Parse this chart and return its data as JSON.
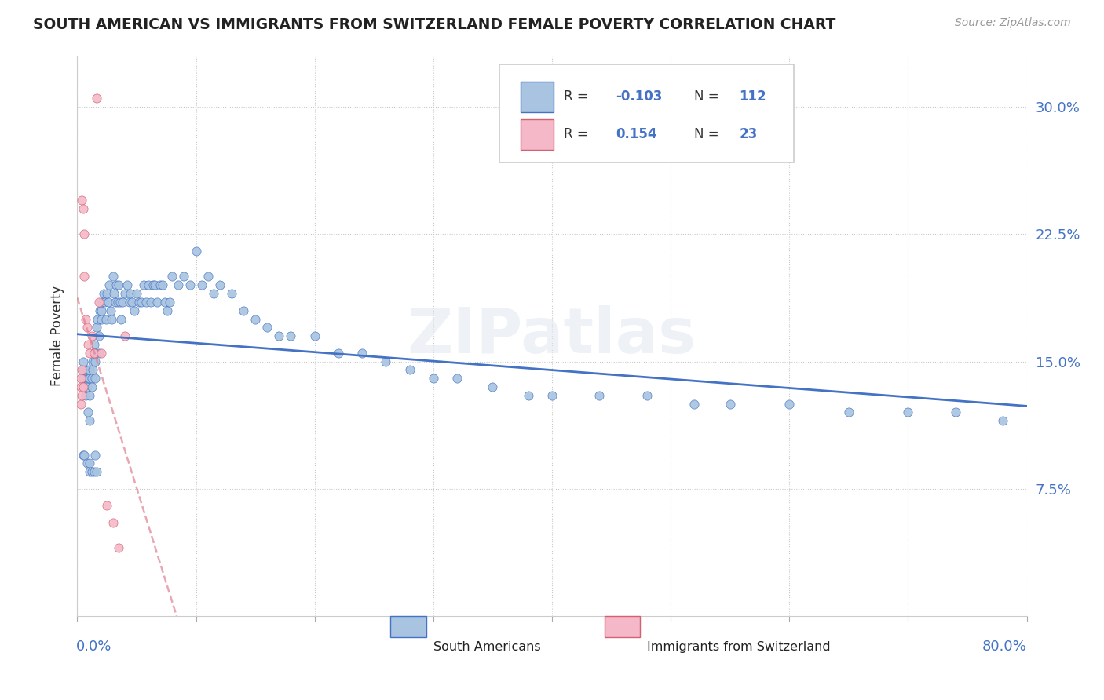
{
  "title": "SOUTH AMERICAN VS IMMIGRANTS FROM SWITZERLAND FEMALE POVERTY CORRELATION CHART",
  "source": "Source: ZipAtlas.com",
  "ylabel": "Female Poverty",
  "yticks": [
    "7.5%",
    "15.0%",
    "22.5%",
    "30.0%"
  ],
  "yticks_vals": [
    0.075,
    0.15,
    0.225,
    0.3
  ],
  "xmin": 0.0,
  "xmax": 0.8,
  "ymin": 0.0,
  "ymax": 0.33,
  "color_blue": "#a8c4e0",
  "color_pink": "#f4b8c8",
  "line_blue": "#4472c4",
  "line_pink": "#d46070",
  "r1": "-0.103",
  "n1": "112",
  "r2": "0.154",
  "n2": "23",
  "south_americans_x": [
    0.005,
    0.005,
    0.005,
    0.005,
    0.007,
    0.007,
    0.008,
    0.008,
    0.009,
    0.009,
    0.01,
    0.01,
    0.01,
    0.01,
    0.012,
    0.012,
    0.013,
    0.013,
    0.014,
    0.014,
    0.015,
    0.015,
    0.016,
    0.016,
    0.017,
    0.018,
    0.018,
    0.019,
    0.02,
    0.02,
    0.021,
    0.022,
    0.023,
    0.024,
    0.025,
    0.026,
    0.027,
    0.028,
    0.029,
    0.03,
    0.031,
    0.032,
    0.033,
    0.034,
    0.035,
    0.036,
    0.037,
    0.038,
    0.04,
    0.042,
    0.044,
    0.045,
    0.046,
    0.048,
    0.05,
    0.052,
    0.054,
    0.056,
    0.058,
    0.06,
    0.062,
    0.064,
    0.065,
    0.067,
    0.07,
    0.072,
    0.074,
    0.076,
    0.078,
    0.08,
    0.085,
    0.09,
    0.095,
    0.1,
    0.105,
    0.11,
    0.115,
    0.12,
    0.13,
    0.14,
    0.15,
    0.16,
    0.17,
    0.18,
    0.2,
    0.22,
    0.24,
    0.26,
    0.28,
    0.3,
    0.32,
    0.35,
    0.38,
    0.4,
    0.44,
    0.48,
    0.52,
    0.55,
    0.6,
    0.65,
    0.7,
    0.74,
    0.78,
    0.005,
    0.006,
    0.008,
    0.01,
    0.01,
    0.012,
    0.014,
    0.015,
    0.016
  ],
  "south_americans_y": [
    0.14,
    0.145,
    0.15,
    0.135,
    0.14,
    0.13,
    0.145,
    0.135,
    0.14,
    0.12,
    0.14,
    0.145,
    0.13,
    0.115,
    0.14,
    0.135,
    0.15,
    0.145,
    0.16,
    0.155,
    0.15,
    0.14,
    0.155,
    0.17,
    0.175,
    0.165,
    0.155,
    0.18,
    0.18,
    0.175,
    0.185,
    0.19,
    0.185,
    0.175,
    0.19,
    0.185,
    0.195,
    0.18,
    0.175,
    0.2,
    0.19,
    0.185,
    0.195,
    0.185,
    0.195,
    0.185,
    0.175,
    0.185,
    0.19,
    0.195,
    0.185,
    0.19,
    0.185,
    0.18,
    0.19,
    0.185,
    0.185,
    0.195,
    0.185,
    0.195,
    0.185,
    0.195,
    0.195,
    0.185,
    0.195,
    0.195,
    0.185,
    0.18,
    0.185,
    0.2,
    0.195,
    0.2,
    0.195,
    0.215,
    0.195,
    0.2,
    0.19,
    0.195,
    0.19,
    0.18,
    0.175,
    0.17,
    0.165,
    0.165,
    0.165,
    0.155,
    0.155,
    0.15,
    0.145,
    0.14,
    0.14,
    0.135,
    0.13,
    0.13,
    0.13,
    0.13,
    0.125,
    0.125,
    0.125,
    0.12,
    0.12,
    0.12,
    0.115,
    0.095,
    0.095,
    0.09,
    0.085,
    0.09,
    0.085,
    0.085,
    0.095,
    0.085
  ],
  "immigrants_x": [
    0.003,
    0.003,
    0.003,
    0.004,
    0.004,
    0.004,
    0.005,
    0.005,
    0.006,
    0.006,
    0.007,
    0.008,
    0.009,
    0.01,
    0.012,
    0.014,
    0.016,
    0.018,
    0.02,
    0.025,
    0.03,
    0.035,
    0.04
  ],
  "immigrants_y": [
    0.14,
    0.135,
    0.125,
    0.145,
    0.13,
    0.245,
    0.135,
    0.24,
    0.225,
    0.2,
    0.175,
    0.17,
    0.16,
    0.155,
    0.165,
    0.155,
    0.305,
    0.185,
    0.155,
    0.065,
    0.055,
    0.04,
    0.165
  ]
}
